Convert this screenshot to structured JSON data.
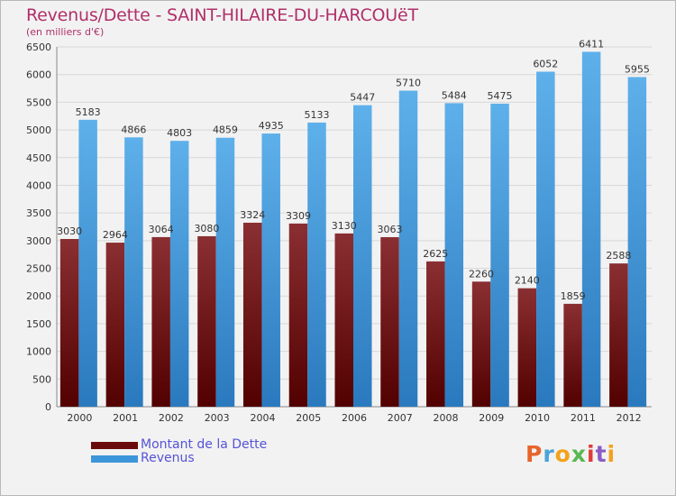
{
  "header": {
    "title": "Revenus/Dette - SAINT-HILAIRE-DU-HARCOUëT",
    "subtitle": "(en milliers d'€)"
  },
  "legend": {
    "items": [
      {
        "label": "Montant de la Dette",
        "color": "#6b0a0a"
      },
      {
        "label": "Revenus",
        "color": "#3d95d9"
      }
    ]
  },
  "logo": {
    "text": "Proxiti",
    "colors": [
      "#e8642c",
      "#4ba3d8",
      "#f2a31c",
      "#59b84f",
      "#e03a3a",
      "#8a5cc4",
      "#f2a31c"
    ]
  },
  "chart_data": {
    "type": "bar",
    "title": "Revenus/Dette - SAINT-HILAIRE-DU-HARCOUëT",
    "ylabel": "(en milliers d'€)",
    "xlabel": "",
    "categories": [
      "2000",
      "2001",
      "2002",
      "2003",
      "2004",
      "2005",
      "2006",
      "2007",
      "2008",
      "2009",
      "2010",
      "2011",
      "2012"
    ],
    "series": [
      {
        "name": "Montant de la Dette",
        "color": "#6b0a0a",
        "values": [
          3030,
          2964,
          3064,
          3080,
          3324,
          3309,
          3130,
          3063,
          2625,
          2260,
          2140,
          1859,
          2588
        ]
      },
      {
        "name": "Revenus",
        "color": "#3d95d9",
        "values": [
          5183,
          4866,
          4803,
          4859,
          4935,
          5133,
          5447,
          5710,
          5484,
          5475,
          6052,
          6411,
          5955
        ]
      }
    ],
    "ylim": [
      0,
      6500
    ],
    "yticks": [
      0,
      500,
      1000,
      1500,
      2000,
      2500,
      3000,
      3500,
      4000,
      4500,
      5000,
      5500,
      6000,
      6500
    ],
    "grid": true,
    "legend_position": "bottom-left"
  }
}
